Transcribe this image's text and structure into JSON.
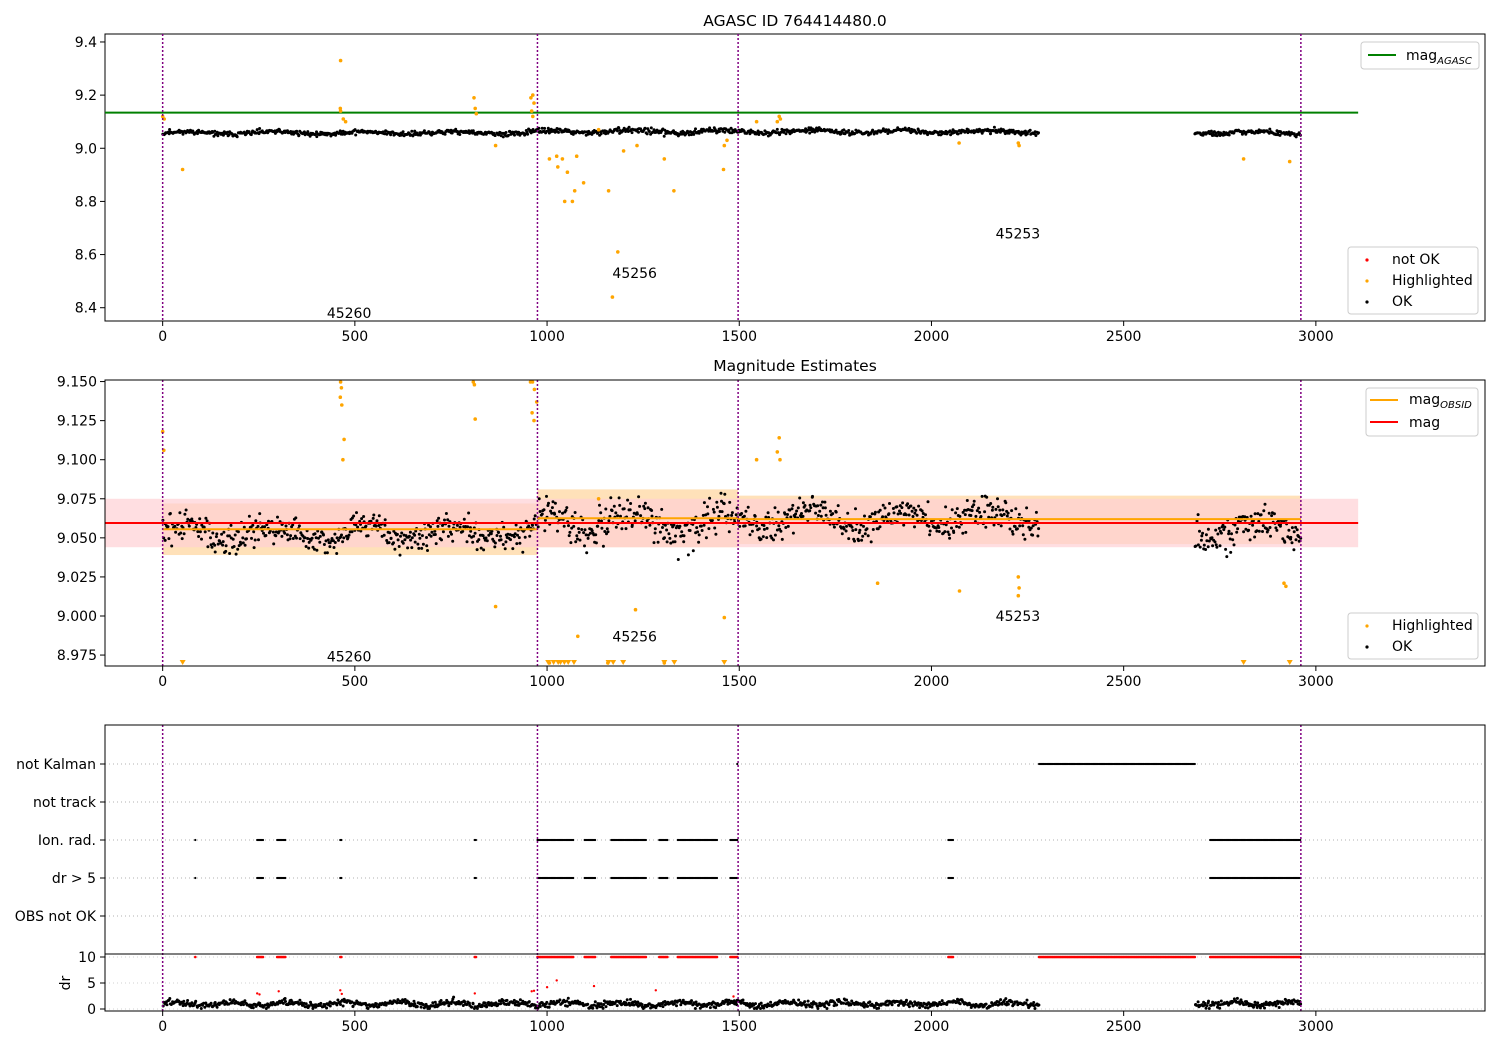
{
  "figure": {
    "background": "#ffffff"
  },
  "colors": {
    "ok": "#000000",
    "highlighted": "#ffa500",
    "not_ok": "#ff0000",
    "mag_agasc": "#008000",
    "mag_obsid": "#ffa500",
    "mag": "#ff0000",
    "obsid_boundary": "#800080",
    "band_mag": "#ffd0d4",
    "band_obsid": "#ffd9a8"
  },
  "chart_data": [
    {
      "type": "scatter",
      "title": "AGASC ID 764414480.0",
      "xlim": [
        -150,
        3440
      ],
      "ylim": [
        8.35,
        9.43
      ],
      "xticks": [
        "0",
        "500",
        "1000",
        "1500",
        "2000",
        "2500",
        "3000"
      ],
      "yticks": [
        "8.4",
        "8.6",
        "8.8",
        "9.0",
        "9.2",
        "9.4"
      ],
      "obsid_boundaries": [
        0,
        975,
        1497,
        2961
      ],
      "obsid_labels": [
        {
          "text": "45260",
          "x": 485,
          "y": 8.38
        },
        {
          "text": "45256",
          "x": 1228,
          "y": 8.53
        },
        {
          "text": "45253",
          "x": 2225,
          "y": 8.68
        }
      ],
      "reference_lines": [
        {
          "legend_main": "mag",
          "legend_sub": "AGASC",
          "value": 9.134,
          "x_range": [
            -150,
            3110
          ]
        }
      ],
      "series": [
        {
          "name": "OK",
          "segments": [
            {
              "x_range": [
                0,
                975
              ],
              "base": 9.058,
              "noise": 0.012
            },
            {
              "x_range": [
                975,
                1497
              ],
              "base": 9.063,
              "noise": 0.014
            },
            {
              "x_range": [
                1497,
                2280
              ],
              "base": 9.063,
              "noise": 0.012
            },
            {
              "x_range": [
                2685,
                2961
              ],
              "base": 9.058,
              "noise": 0.012
            }
          ]
        },
        {
          "name": "Highlighted",
          "points": [
            [
              0,
              9.12
            ],
            [
              4,
              9.11
            ],
            [
              52,
              8.92
            ],
            [
              463,
              9.33
            ],
            [
              462,
              9.15
            ],
            [
              463,
              9.14
            ],
            [
              470,
              9.11
            ],
            [
              476,
              9.1
            ],
            [
              810,
              9.19
            ],
            [
              813,
              9.15
            ],
            [
              816,
              9.13
            ],
            [
              866,
              9.01
            ],
            [
              958,
              9.19
            ],
            [
              963,
              9.2
            ],
            [
              966,
              9.17
            ],
            [
              960,
              9.14
            ],
            [
              963,
              9.12
            ],
            [
              1006,
              8.96
            ],
            [
              1025,
              8.97
            ],
            [
              1028,
              8.93
            ],
            [
              1040,
              8.96
            ],
            [
              1046,
              8.8
            ],
            [
              1053,
              8.91
            ],
            [
              1066,
              8.8
            ],
            [
              1072,
              8.84
            ],
            [
              1077,
              8.97
            ],
            [
              1095,
              8.87
            ],
            [
              1134,
              9.07
            ],
            [
              1160,
              8.84
            ],
            [
              1170,
              8.44
            ],
            [
              1184,
              8.61
            ],
            [
              1199,
              8.99
            ],
            [
              1234,
              9.01
            ],
            [
              1305,
              8.96
            ],
            [
              1330,
              8.84
            ],
            [
              1459,
              8.92
            ],
            [
              1461,
              9.01
            ],
            [
              1468,
              9.03
            ],
            [
              1545,
              9.1
            ],
            [
              1599,
              9.1
            ],
            [
              1604,
              9.12
            ],
            [
              1607,
              9.11
            ],
            [
              2072,
              9.02
            ],
            [
              2226,
              9.02
            ],
            [
              2228,
              9.01
            ],
            [
              2812,
              8.96
            ],
            [
              2932,
              8.95
            ]
          ]
        },
        {
          "name": "not OK",
          "points": []
        }
      ],
      "legend_lines_position": "upper right",
      "legend_points_position": "lower right"
    },
    {
      "type": "scatter",
      "title": "Magnitude Estimates",
      "xlim": [
        -150,
        3440
      ],
      "ylim": [
        8.968,
        9.151
      ],
      "xticks": [
        "0",
        "500",
        "1000",
        "1500",
        "2000",
        "2500",
        "3000"
      ],
      "yticks": [
        "8.975",
        "9.000",
        "9.025",
        "9.050",
        "9.075",
        "9.100",
        "9.125",
        "9.150"
      ],
      "obsid_boundaries": [
        0,
        975,
        1497,
        2961
      ],
      "obsid_labels": [
        {
          "text": "45260",
          "x": 485,
          "y": 8.974
        },
        {
          "text": "45256",
          "x": 1228,
          "y": 8.987
        },
        {
          "text": "45253",
          "x": 2225,
          "y": 9.0
        }
      ],
      "reference_lines": [
        {
          "legend_main": "mag",
          "legend_sub": "OBSID",
          "segments": [
            {
              "x_range": [
                0,
                975
              ],
              "value": 9.0555,
              "band": [
                9.039,
                9.072
              ]
            },
            {
              "x_range": [
                975,
                1497
              ],
              "value": 9.0625,
              "band": [
                9.044,
                9.081
              ]
            },
            {
              "x_range": [
                1497,
                2961
              ],
              "value": 9.062,
              "band": [
                9.046,
                9.077
              ]
            }
          ]
        },
        {
          "legend_main": "mag",
          "legend_sub": "",
          "value": 9.0595,
          "band": [
            9.044,
            9.075
          ],
          "x_range": [
            -150,
            3110
          ]
        }
      ],
      "series": [
        {
          "name": "OK",
          "segments": [
            {
              "x_range": [
                0,
                975
              ],
              "base": 9.053,
              "noise": 0.012
            },
            {
              "x_range": [
                975,
                1497
              ],
              "base": 9.06,
              "noise": 0.016
            },
            {
              "x_range": [
                1497,
                2280
              ],
              "base": 9.062,
              "noise": 0.013
            },
            {
              "x_range": [
                2685,
                2961
              ],
              "base": 9.055,
              "noise": 0.014
            }
          ]
        },
        {
          "name": "Highlighted",
          "points": [
            [
              0,
              9.118
            ],
            [
              3,
              9.106
            ],
            [
              463,
              9.15
            ],
            [
              465,
              9.146
            ],
            [
              462,
              9.14
            ],
            [
              466,
              9.135
            ],
            [
              472,
              9.113
            ],
            [
              469,
              9.1
            ],
            [
              808,
              9.15
            ],
            [
              811,
              9.148
            ],
            [
              813,
              9.126
            ],
            [
              866,
              9.006
            ],
            [
              957,
              9.15
            ],
            [
              962,
              9.15
            ],
            [
              967,
              9.145
            ],
            [
              961,
              9.13
            ],
            [
              966,
              9.125
            ],
            [
              973,
              9.137
            ],
            [
              1006,
              8.97
            ],
            [
              1080,
              8.987
            ],
            [
              1134,
              9.075
            ],
            [
              1158,
              8.97
            ],
            [
              1230,
              9.004
            ],
            [
              1305,
              8.97
            ],
            [
              1461,
              8.999
            ],
            [
              1545,
              9.1
            ],
            [
              1599,
              9.105
            ],
            [
              1604,
              9.114
            ],
            [
              1606,
              9.1
            ],
            [
              1860,
              9.021
            ],
            [
              2073,
              9.016
            ],
            [
              2226,
              9.025
            ],
            [
              2228,
              9.018
            ],
            [
              2226,
              9.013
            ],
            [
              2917,
              9.021
            ],
            [
              2922,
              9.019
            ]
          ],
          "clipped_low_x": [
            52,
            1003,
            1017,
            1029,
            1035,
            1045,
            1055,
            1070,
            1160,
            1172,
            1198,
            1305,
            1331,
            1461,
            2812,
            2932
          ]
        }
      ],
      "legend_lines_position": "upper right",
      "legend_points_position": "lower right"
    },
    {
      "type": "scatter",
      "title": "",
      "xlim": [
        -150,
        3440
      ],
      "xticks": [
        "0",
        "500",
        "1000",
        "1500",
        "2000",
        "2500",
        "3000"
      ],
      "obsid_boundaries": [
        0,
        975,
        1497,
        2961
      ],
      "flag_rows": [
        "not Kalman",
        "not track",
        "Ion. rad.",
        "dr > 5",
        "OBS not OK"
      ],
      "flag_spans": {
        "not Kalman": [
          [
            1495,
            1497
          ],
          [
            2280,
            2685
          ]
        ],
        "not track": [],
        "Ion. rad.": [
          [
            85,
            86
          ],
          [
            246,
            262
          ],
          [
            298,
            320
          ],
          [
            462,
            467
          ],
          [
            812,
            816
          ],
          [
            975,
            1068
          ],
          [
            1098,
            1125
          ],
          [
            1167,
            1257
          ],
          [
            1292,
            1315
          ],
          [
            1340,
            1442
          ],
          [
            1477,
            1497
          ],
          [
            2044,
            2057
          ],
          [
            2725,
            2961
          ]
        ],
        "dr > 5": [
          [
            85,
            86
          ],
          [
            246,
            262
          ],
          [
            298,
            320
          ],
          [
            462,
            467
          ],
          [
            812,
            816
          ],
          [
            975,
            1068
          ],
          [
            1098,
            1125
          ],
          [
            1167,
            1257
          ],
          [
            1292,
            1315
          ],
          [
            1340,
            1442
          ],
          [
            1477,
            1497
          ],
          [
            2044,
            2057
          ],
          [
            2725,
            2961
          ]
        ],
        "OBS not OK": []
      },
      "dr_ylabel": "dr",
      "dr_yticks": [
        "0",
        "5",
        "10"
      ],
      "dr_clip_value": 10,
      "dr_clipped_spans": [
        [
          85,
          86
        ],
        [
          246,
          262
        ],
        [
          298,
          320
        ],
        [
          462,
          467
        ],
        [
          812,
          816
        ],
        [
          975,
          1068
        ],
        [
          1098,
          1125
        ],
        [
          1167,
          1257
        ],
        [
          1292,
          1315
        ],
        [
          1340,
          1442
        ],
        [
          1477,
          1497
        ],
        [
          2044,
          2057
        ],
        [
          2280,
          2685
        ],
        [
          2725,
          2961
        ]
      ],
      "dr_ok_segments": [
        [
          0,
          975
        ],
        [
          975,
          1497
        ],
        [
          1497,
          2280
        ],
        [
          2685,
          2961
        ]
      ],
      "dr_red_points": [
        [
          246,
          3.0
        ],
        [
          252,
          2.8
        ],
        [
          302,
          3.4
        ],
        [
          462,
          3.6
        ],
        [
          466,
          2.9
        ],
        [
          812,
          3.0
        ],
        [
          960,
          3.4
        ],
        [
          966,
          3.5
        ],
        [
          1000,
          4.2
        ],
        [
          1025,
          5.5
        ],
        [
          1122,
          4.4
        ],
        [
          1283,
          3.6
        ],
        [
          1485,
          2.4
        ]
      ]
    }
  ],
  "legends": {
    "top_lines": [
      {
        "main": "mag",
        "sub": "AGASC"
      }
    ],
    "top_points": [
      "not OK",
      "Highlighted",
      "OK"
    ],
    "mid_lines": [
      {
        "main": "mag",
        "sub": "OBSID"
      },
      {
        "main": "mag",
        "sub": ""
      }
    ],
    "mid_points": [
      "Highlighted",
      "OK"
    ]
  }
}
